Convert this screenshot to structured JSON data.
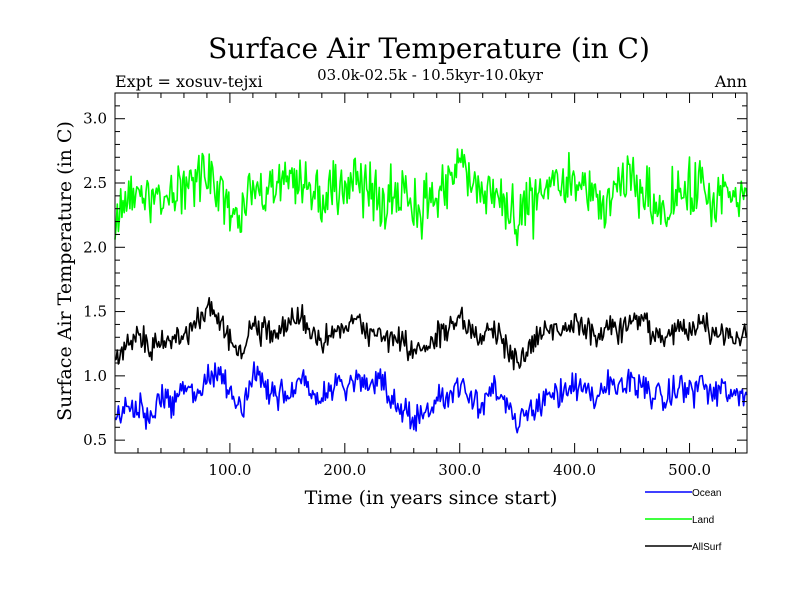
{
  "chart_data": {
    "type": "line",
    "title": "Surface Air Temperature (in C)",
    "subtitle": "03.0k-02.5k - 10.5kyr-10.0kyr",
    "experiment": "Expt = xosuv-tejxi",
    "period": "Ann",
    "xlabel": "Time (in years since start)",
    "ylabel": "Surface Air Temperature (in C)",
    "xlim": [
      0,
      550
    ],
    "ylim": [
      0.4,
      3.2
    ],
    "x_ticks": [
      100,
      200,
      300,
      400,
      500
    ],
    "x_tick_labels": [
      "100.0",
      "200.0",
      "300.0",
      "400.0",
      "500.0"
    ],
    "y_ticks": [
      0.5,
      1.0,
      1.5,
      2.0,
      2.5,
      3.0
    ],
    "y_tick_labels": [
      "0.5",
      "1.0",
      "1.5",
      "2.0",
      "2.5",
      "3.0"
    ],
    "legend_position": "bottom-right",
    "series": [
      {
        "name": "Ocean",
        "color": "#0000ff",
        "x": [
          0,
          10,
          20,
          30,
          40,
          50,
          60,
          70,
          80,
          90,
          100,
          110,
          120,
          130,
          140,
          150,
          160,
          170,
          180,
          190,
          200,
          210,
          220,
          230,
          240,
          250,
          260,
          270,
          280,
          290,
          300,
          310,
          320,
          330,
          340,
          350,
          360,
          370,
          380,
          390,
          400,
          410,
          420,
          430,
          440,
          450,
          460,
          470,
          480,
          490,
          500,
          510,
          520,
          530,
          540,
          550
        ],
        "values": [
          0.68,
          0.72,
          0.78,
          0.62,
          0.85,
          0.8,
          0.9,
          0.82,
          1.0,
          1.02,
          0.92,
          0.72,
          0.98,
          0.95,
          0.82,
          0.88,
          1.0,
          0.9,
          0.78,
          0.95,
          0.88,
          1.0,
          0.9,
          0.95,
          0.82,
          0.75,
          0.68,
          0.72,
          0.8,
          0.85,
          0.95,
          0.85,
          0.8,
          0.92,
          0.75,
          0.6,
          0.72,
          0.8,
          0.9,
          0.82,
          0.95,
          0.85,
          0.8,
          0.95,
          0.9,
          0.98,
          0.92,
          0.85,
          0.8,
          0.92,
          0.88,
          0.95,
          0.85,
          0.9,
          0.82,
          0.85
        ]
      },
      {
        "name": "Land",
        "color": "#00ff00",
        "x": [
          0,
          10,
          20,
          30,
          40,
          50,
          60,
          70,
          80,
          90,
          100,
          110,
          120,
          130,
          140,
          150,
          160,
          170,
          180,
          190,
          200,
          210,
          220,
          230,
          240,
          250,
          260,
          270,
          280,
          290,
          300,
          310,
          320,
          330,
          340,
          350,
          360,
          370,
          380,
          390,
          400,
          410,
          420,
          430,
          440,
          450,
          460,
          470,
          480,
          490,
          500,
          510,
          520,
          530,
          540,
          550
        ],
        "values": [
          2.2,
          2.4,
          2.5,
          2.3,
          2.45,
          2.35,
          2.5,
          2.55,
          2.6,
          2.45,
          2.3,
          2.2,
          2.55,
          2.4,
          2.45,
          2.6,
          2.55,
          2.5,
          2.4,
          2.45,
          2.5,
          2.55,
          2.45,
          2.3,
          2.4,
          2.5,
          2.3,
          2.35,
          2.4,
          2.45,
          2.7,
          2.5,
          2.4,
          2.45,
          2.3,
          2.1,
          2.35,
          2.4,
          2.55,
          2.45,
          2.45,
          2.5,
          2.3,
          2.35,
          2.45,
          2.55,
          2.4,
          2.35,
          2.3,
          2.45,
          2.4,
          2.5,
          2.35,
          2.4,
          2.35,
          2.4
        ]
      },
      {
        "name": "AllSurf",
        "color": "#000000",
        "x": [
          0,
          10,
          20,
          30,
          40,
          50,
          60,
          70,
          80,
          90,
          100,
          110,
          120,
          130,
          140,
          150,
          160,
          170,
          180,
          190,
          200,
          210,
          220,
          230,
          240,
          250,
          260,
          270,
          280,
          290,
          300,
          310,
          320,
          330,
          340,
          350,
          360,
          370,
          380,
          390,
          400,
          410,
          420,
          430,
          440,
          450,
          460,
          470,
          480,
          490,
          500,
          510,
          520,
          530,
          540,
          550
        ],
        "values": [
          1.1,
          1.25,
          1.35,
          1.2,
          1.3,
          1.28,
          1.35,
          1.4,
          1.55,
          1.45,
          1.3,
          1.15,
          1.38,
          1.35,
          1.32,
          1.4,
          1.45,
          1.35,
          1.3,
          1.38,
          1.35,
          1.42,
          1.35,
          1.3,
          1.28,
          1.3,
          1.2,
          1.22,
          1.3,
          1.35,
          1.45,
          1.35,
          1.3,
          1.38,
          1.25,
          1.1,
          1.25,
          1.3,
          1.4,
          1.35,
          1.4,
          1.38,
          1.3,
          1.38,
          1.35,
          1.45,
          1.38,
          1.32,
          1.28,
          1.38,
          1.35,
          1.42,
          1.32,
          1.35,
          1.3,
          1.3
        ]
      }
    ]
  }
}
